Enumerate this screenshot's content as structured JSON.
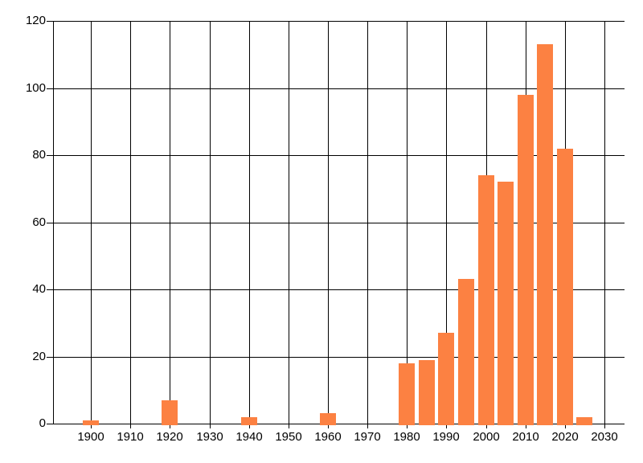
{
  "chart_data": {
    "type": "bar",
    "title": "",
    "xlabel": "",
    "ylabel": "",
    "x": [
      1900,
      1920,
      1940,
      1960,
      1980,
      1985,
      1990,
      1995,
      2000,
      2005,
      2010,
      2015,
      2020,
      2025
    ],
    "values": [
      1,
      7,
      2,
      3,
      18,
      19,
      27,
      43,
      74,
      72,
      98,
      113,
      82,
      2
    ],
    "x_ticks": [
      1900,
      1910,
      1920,
      1930,
      1940,
      1950,
      1960,
      1970,
      1980,
      1990,
      2000,
      2010,
      2020,
      2030
    ],
    "y_ticks": [
      0,
      20,
      40,
      60,
      80,
      100,
      120
    ],
    "xlim": [
      1890.4,
      2035.1
    ],
    "ylim": [
      0,
      120
    ],
    "bar_width_years": 4,
    "grid": true,
    "legend": false,
    "colors": {
      "bar": "#FC8142",
      "grid": "#000000",
      "axis": "#000000",
      "text": "#000000",
      "background": "#FFFFFF"
    }
  }
}
